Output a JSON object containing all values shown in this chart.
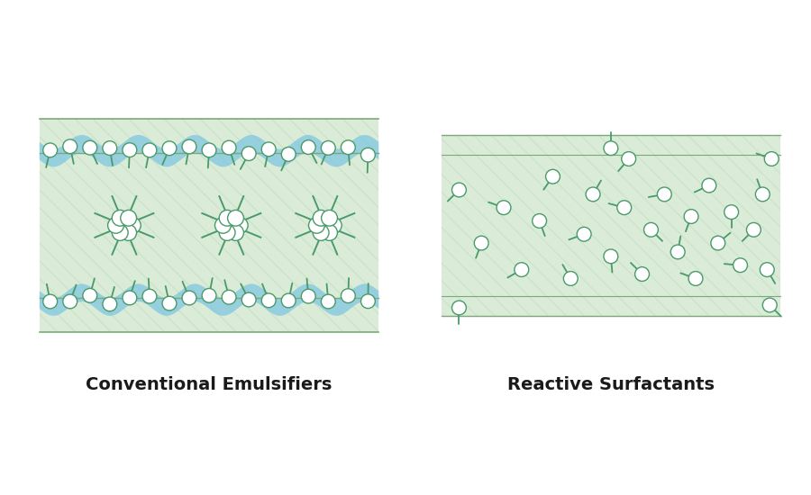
{
  "bg_color": "#ffffff",
  "film_fill_color": "#daebd8",
  "film_fill_light": "#e8f3e6",
  "film_border_color": "#7aaa7a",
  "blue_wave_color": "#85c8e0",
  "micelle_blue_color": "#85c8e0",
  "surfactant_color": "#4a9a6a",
  "circle_face": "#ffffff",
  "circle_edge": "#4a9a6a",
  "label_left": "Conventional Emulsifiers",
  "label_right": "Reactive Surfactants",
  "label_fontsize": 14,
  "label_fontweight": "bold",
  "hatch_color": "#b8d8b5",
  "hatch_alpha": 0.6
}
